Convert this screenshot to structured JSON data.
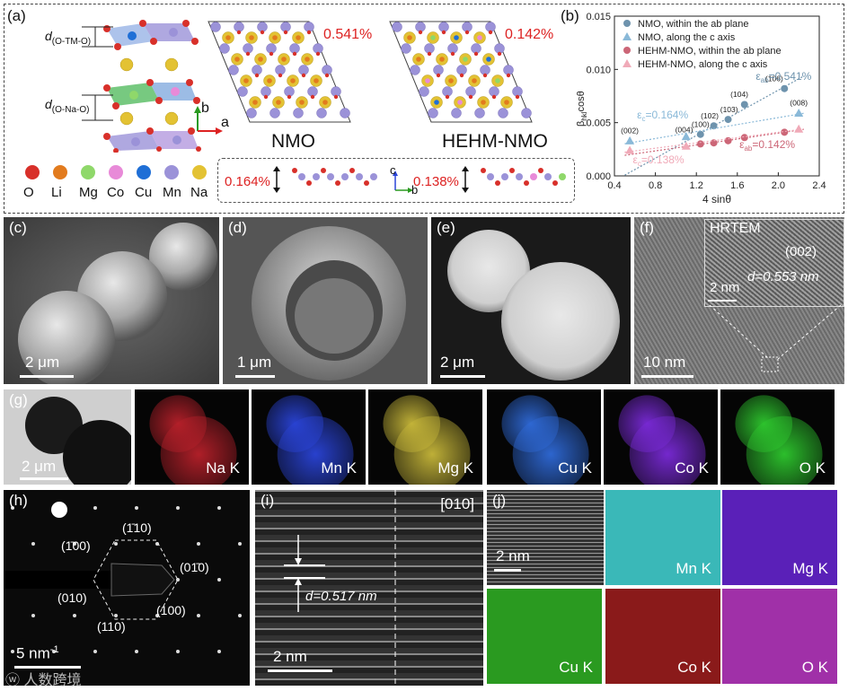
{
  "panel_a": {
    "label": "(a)",
    "d_tm": "d",
    "d_tm_sub": "(O-TM-O)",
    "d_na": "d",
    "d_na_sub": "(O-Na-O)",
    "axis_b": "b",
    "axis_a": "a",
    "strain_nmo": "0.541%",
    "strain_hehm": "0.142%",
    "title_nmo": "NMO",
    "title_hehm": "HEHM-NMO",
    "c_strain_nmo": "0.164%",
    "c_strain_hehm": "0.138%",
    "axis_c": "c",
    "axis_b2": "b",
    "elements": [
      {
        "name": "O",
        "color": "#d8302a"
      },
      {
        "name": "Li",
        "color": "#e27b1e"
      },
      {
        "name": "Mg",
        "color": "#8fd86a"
      },
      {
        "name": "Co",
        "color": "#e88ad8"
      },
      {
        "name": "Cu",
        "color": "#1f6fd6"
      },
      {
        "name": "Mn",
        "color": "#9b92d8"
      },
      {
        "name": "Na",
        "color": "#e3c233"
      }
    ]
  },
  "panel_b": {
    "label": "(b)",
    "legend": [
      {
        "text": "NMO, within the ab plane",
        "color": "#6e93ad",
        "marker": "circle"
      },
      {
        "text": "NMO, along the c axis",
        "color": "#8ab9d8",
        "marker": "triangle"
      },
      {
        "text": "HEHM-NMO, within the ab plane",
        "color": "#cc6677",
        "marker": "circle"
      },
      {
        "text": "HEHM-NMO, along the c axis",
        "color": "#f0aab8",
        "marker": "triangle"
      }
    ],
    "annotations": {
      "eab_nmo": "ε",
      "eab_nmo_sub": "ab",
      "eab_nmo_val": "=0.541%",
      "ec_nmo": "ε",
      "ec_nmo_sub": "c",
      "ec_nmo_val": "=0.164%",
      "eab_hehm": "ε",
      "eab_hehm_sub": "ab",
      "eab_hehm_val": "=0.142%",
      "ec_hehm": "ε",
      "ec_hehm_sub": "c",
      "ec_hehm_val": "=0.138%"
    },
    "hkl": [
      "(002)",
      "(004)",
      "(100)",
      "(102)",
      "(103)",
      "(104)",
      "(106)",
      "(008)"
    ]
  },
  "chart_data": {
    "type": "scatter",
    "xlabel": "4 sinθ",
    "ylabel": "β",
    "ylabel_sub": "hkl",
    "ylabel_tail": "cosθ",
    "xlim": [
      0.4,
      2.4
    ],
    "ylim": [
      0.0,
      0.015
    ],
    "xticks": [
      "0.4",
      "0.8",
      "1.2",
      "1.6",
      "2.0",
      "2.4"
    ],
    "yticks": [
      "0.000",
      "0.005",
      "0.010",
      "0.015"
    ],
    "grid": false,
    "legend_position": "top",
    "series": [
      {
        "name": "NMO, within the ab plane",
        "x": [
          1.24,
          1.37,
          1.51,
          1.67,
          2.06
        ],
        "y": [
          0.0039,
          0.0047,
          0.0053,
          0.0067,
          0.0082
        ]
      },
      {
        "name": "NMO, along the c axis",
        "x": [
          0.55,
          1.1,
          2.2
        ],
        "y": [
          0.0033,
          0.0037,
          0.0059
        ]
      },
      {
        "name": "HEHM-NMO, within the ab plane",
        "x": [
          1.24,
          1.37,
          1.51,
          1.67,
          2.06
        ],
        "y": [
          0.003,
          0.0031,
          0.0033,
          0.0036,
          0.0041
        ]
      },
      {
        "name": "HEHM-NMO, along the c axis",
        "x": [
          0.55,
          1.1,
          2.2
        ],
        "y": [
          0.0024,
          0.0028,
          0.0044
        ]
      }
    ]
  },
  "panel_c": {
    "label": "(c)",
    "scale": "2 μm"
  },
  "panel_d": {
    "label": "(d)",
    "scale": "1 μm"
  },
  "panel_e": {
    "label": "(e)",
    "scale": "2 μm"
  },
  "panel_f": {
    "label": "(f)",
    "scale": "10 nm",
    "inset_title": "HRTEM",
    "inset_hkl": "(002)",
    "inset_d": "d=0.553 nm",
    "inset_scale": "2 nm"
  },
  "panel_g": {
    "label": "(g)",
    "scale": "2 μm",
    "maps": [
      {
        "name": "Na K",
        "color": "#b8202a"
      },
      {
        "name": "Mn K",
        "color": "#2a44d8"
      },
      {
        "name": "Mg K",
        "color": "#c8b83a"
      },
      {
        "name": "Cu K",
        "color": "#2f6ad8"
      },
      {
        "name": "Co K",
        "color": "#7a2ad8"
      },
      {
        "name": "O K",
        "color": "#2ec82e"
      }
    ]
  },
  "panel_h": {
    "label": "(h)",
    "scale": "5 nm",
    "scale_sup": "-1",
    "spots": [
      "(1̄10)",
      "(1̄00)",
      "(01̄0)",
      "(010)",
      "(110)",
      "(100)"
    ]
  },
  "panel_i": {
    "label": "(i)",
    "zone": "[010]",
    "d": "d=0.517 nm",
    "scale": "2 nm"
  },
  "panel_j": {
    "label": "(j)",
    "scale": "2 nm",
    "maps": [
      {
        "name": "Mn K",
        "color": "#3ab8b8"
      },
      {
        "name": "Mg K",
        "color": "#5a20b8"
      },
      {
        "name": "Cu K",
        "color": "#2a9a20"
      },
      {
        "name": "Co K",
        "color": "#8a1a1a"
      },
      {
        "name": "O K",
        "color": "#a030a8"
      }
    ]
  },
  "watermark": "人数跨境"
}
